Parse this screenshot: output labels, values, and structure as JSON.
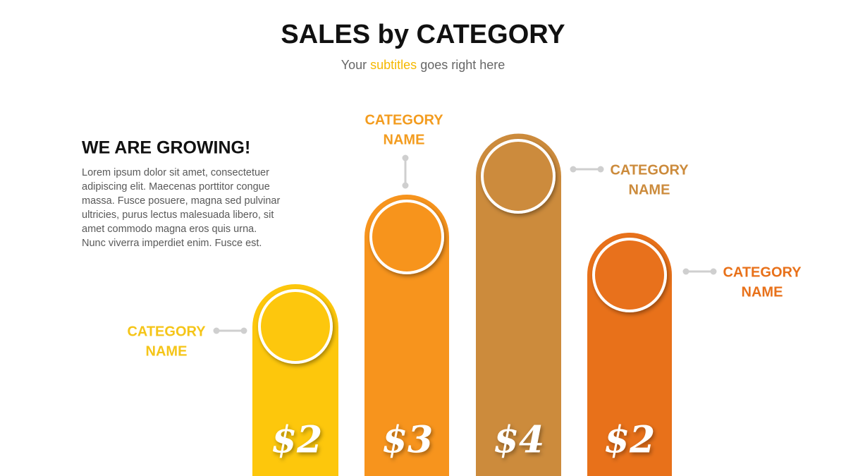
{
  "header": {
    "title": "SALES by CATEGORY",
    "subtitle": [
      "Your",
      "subtitles",
      "goes right here"
    ]
  },
  "intro": {
    "heading": "WE ARE GROWING!",
    "body": [
      "Lorem ipsum dolor sit amet, consectetuer",
      "adipiscing elit. Maecenas porttitor congue",
      "massa. Fusce posuere, magna sed pulvinar",
      "ultricies, purus lectus malesuada libero, sit",
      "amet commodo magna eros quis urna.",
      "Nunc viverra imperdiet enim. Fusce est."
    ]
  },
  "items": [
    {
      "label": [
        "CATEGORY",
        "NAME"
      ],
      "value": "$2"
    },
    {
      "label": [
        "CATEGORY",
        "NAME"
      ],
      "value": "$3"
    },
    {
      "label": [
        "CATEGORY",
        "NAME"
      ],
      "value": "$4"
    },
    {
      "label": [
        "CATEGORY",
        "NAME"
      ],
      "value": "$2"
    }
  ]
}
